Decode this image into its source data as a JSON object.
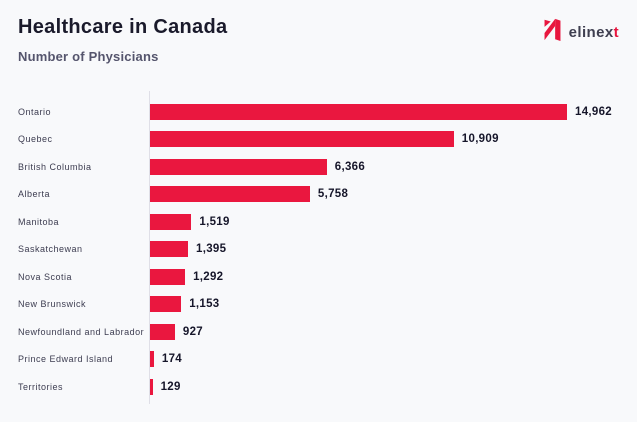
{
  "header": {
    "title": "Healthcare in Canada",
    "subtitle": "Number of Physicians",
    "logo": {
      "text_main": "elinex",
      "text_accent": "t",
      "mark_color": "#e8163e",
      "text_color": "#3f3f50"
    }
  },
  "chart_data": {
    "type": "bar",
    "orientation": "horizontal",
    "title": "Healthcare in Canada",
    "subtitle": "Number of Physicians",
    "categories": [
      "Ontario",
      "Quebec",
      "British Columbia",
      "Alberta",
      "Manitoba",
      "Saskatchewan",
      "Nova Scotia",
      "New Brunswick",
      "Newfoundland and Labrador",
      "Prince Edward Island",
      "Territories"
    ],
    "values": [
      14962,
      10909,
      6366,
      5758,
      1519,
      1395,
      1292,
      1153,
      927,
      174,
      129
    ],
    "value_labels": [
      "14,962",
      "10,909",
      "6,366",
      "5,758",
      "1,519",
      "1,395",
      "1,292",
      "1,153",
      "927",
      "174",
      "129"
    ],
    "bar_color": "#ea173f",
    "xlim": [
      0,
      15000
    ],
    "grid": false,
    "legend": false,
    "data_labels": "end-of-bar"
  },
  "colors": {
    "background": "#f8f9fb",
    "title": "#1a1a2b",
    "subtitle": "#55556d",
    "category_label": "#3c3c50",
    "value_label": "#16162a",
    "axis_line": "#dfdfe7",
    "accent_red": "#e8163e"
  }
}
